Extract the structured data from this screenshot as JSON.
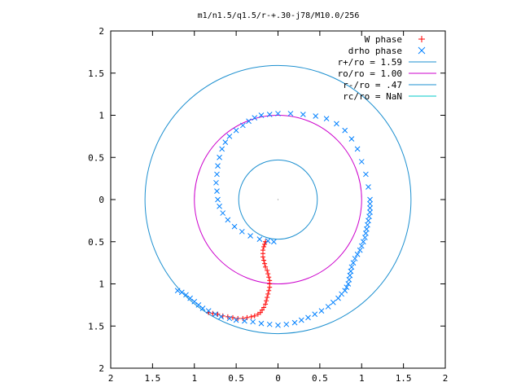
{
  "chart_data": {
    "type": "scatter",
    "title": "m1/n1.5/q1.5/r-+.30-j78/M10.0/256",
    "xlabel": "",
    "ylabel": "",
    "xlim": [
      -2,
      2
    ],
    "ylim": [
      -2,
      2
    ],
    "grid": false,
    "legend_position": "top-right",
    "x_tick_labels": [
      "2",
      "1.5",
      "1",
      "0.5",
      "0",
      "0.5",
      "1",
      "1.5",
      "2"
    ],
    "y_tick_labels": [
      "2",
      "1.5",
      "1",
      "0.5",
      "0",
      "0.5",
      "1",
      "1.5",
      "2"
    ],
    "x_tick_values": [
      -2,
      -1.5,
      -1,
      -0.5,
      0,
      0.5,
      1,
      1.5,
      2
    ],
    "y_tick_values": [
      2,
      1.5,
      1,
      0.5,
      0,
      -0.5,
      -1,
      -1.5,
      -2
    ],
    "series": [
      {
        "name": "W phase",
        "marker": "plus",
        "color": "#ff0000",
        "points": [
          [
            -0.15,
            -0.5
          ],
          [
            -0.16,
            -0.53
          ],
          [
            -0.17,
            -0.56
          ],
          [
            -0.18,
            -0.6
          ],
          [
            -0.18,
            -0.64
          ],
          [
            -0.18,
            -0.68
          ],
          [
            -0.17,
            -0.72
          ],
          [
            -0.16,
            -0.76
          ],
          [
            -0.15,
            -0.8
          ],
          [
            -0.13,
            -0.84
          ],
          [
            -0.12,
            -0.88
          ],
          [
            -0.11,
            -0.92
          ],
          [
            -0.1,
            -0.96
          ],
          [
            -0.1,
            -1.0
          ],
          [
            -0.1,
            -1.04
          ],
          [
            -0.11,
            -1.08
          ],
          [
            -0.12,
            -1.12
          ],
          [
            -0.13,
            -1.16
          ],
          [
            -0.14,
            -1.2
          ],
          [
            -0.15,
            -1.24
          ],
          [
            -0.17,
            -1.28
          ],
          [
            -0.19,
            -1.31
          ],
          [
            -0.21,
            -1.34
          ],
          [
            -0.24,
            -1.36
          ],
          [
            -0.28,
            -1.38
          ],
          [
            -0.32,
            -1.39
          ],
          [
            -0.37,
            -1.4
          ],
          [
            -0.42,
            -1.41
          ],
          [
            -0.48,
            -1.41
          ],
          [
            -0.54,
            -1.4
          ],
          [
            -0.6,
            -1.39
          ],
          [
            -0.66,
            -1.38
          ],
          [
            -0.72,
            -1.36
          ],
          [
            -0.78,
            -1.35
          ],
          [
            -0.83,
            -1.34
          ]
        ]
      },
      {
        "name": "drho phase",
        "marker": "cross",
        "color": "#0080ff",
        "points": [
          [
            -1.2,
            -1.08
          ],
          [
            -1.15,
            -1.1
          ],
          [
            -1.1,
            -1.13
          ],
          [
            -1.05,
            -1.17
          ],
          [
            -1.0,
            -1.21
          ],
          [
            -0.95,
            -1.25
          ],
          [
            -0.9,
            -1.29
          ],
          [
            -0.83,
            -1.32
          ],
          [
            -0.75,
            -1.36
          ],
          [
            -0.68,
            -1.39
          ],
          [
            -0.58,
            -1.41
          ],
          [
            -0.5,
            -1.43
          ],
          [
            -0.4,
            -1.44
          ],
          [
            -0.3,
            -1.45
          ],
          [
            -0.2,
            -1.47
          ],
          [
            -0.1,
            -1.48
          ],
          [
            0.0,
            -1.49
          ],
          [
            0.1,
            -1.48
          ],
          [
            0.2,
            -1.46
          ],
          [
            0.28,
            -1.43
          ],
          [
            0.36,
            -1.4
          ],
          [
            0.44,
            -1.36
          ],
          [
            0.52,
            -1.32
          ],
          [
            0.6,
            -1.27
          ],
          [
            0.66,
            -1.22
          ],
          [
            0.72,
            -1.17
          ],
          [
            0.76,
            -1.12
          ],
          [
            0.8,
            -1.08
          ],
          [
            0.82,
            -1.04
          ],
          [
            0.84,
            -1.0
          ],
          [
            0.85,
            -0.95
          ],
          [
            0.86,
            -0.9
          ],
          [
            0.87,
            -0.85
          ],
          [
            0.88,
            -0.8
          ],
          [
            0.9,
            -0.75
          ],
          [
            0.92,
            -0.7
          ],
          [
            0.95,
            -0.65
          ],
          [
            0.98,
            -0.6
          ],
          [
            1.0,
            -0.55
          ],
          [
            1.02,
            -0.5
          ],
          [
            1.04,
            -0.45
          ],
          [
            1.05,
            -0.4
          ],
          [
            1.06,
            -0.35
          ],
          [
            1.07,
            -0.3
          ],
          [
            1.08,
            -0.25
          ],
          [
            1.09,
            -0.2
          ],
          [
            1.1,
            -0.15
          ],
          [
            1.1,
            -0.1
          ],
          [
            1.1,
            -0.05
          ],
          [
            1.1,
            0.0
          ],
          [
            1.08,
            0.15
          ],
          [
            1.05,
            0.3
          ],
          [
            1.0,
            0.45
          ],
          [
            0.95,
            0.6
          ],
          [
            0.88,
            0.72
          ],
          [
            0.8,
            0.82
          ],
          [
            0.7,
            0.9
          ],
          [
            0.58,
            0.96
          ],
          [
            0.45,
            0.99
          ],
          [
            0.3,
            1.01
          ],
          [
            0.15,
            1.02
          ],
          [
            0.0,
            1.02
          ],
          [
            -0.1,
            1.01
          ],
          [
            -0.2,
            1.0
          ],
          [
            -0.28,
            0.97
          ],
          [
            -0.35,
            0.93
          ],
          [
            -0.42,
            0.88
          ],
          [
            -0.5,
            0.82
          ],
          [
            -0.58,
            0.75
          ],
          [
            -0.63,
            0.68
          ],
          [
            -0.67,
            0.6
          ],
          [
            -0.7,
            0.5
          ],
          [
            -0.72,
            0.4
          ],
          [
            -0.73,
            0.3
          ],
          [
            -0.74,
            0.2
          ],
          [
            -0.73,
            0.1
          ],
          [
            -0.72,
            0.0
          ],
          [
            -0.7,
            -0.08
          ],
          [
            -0.66,
            -0.16
          ],
          [
            -0.6,
            -0.24
          ],
          [
            -0.52,
            -0.32
          ],
          [
            -0.43,
            -0.38
          ],
          [
            -0.33,
            -0.43
          ],
          [
            -0.22,
            -0.47
          ],
          [
            -0.12,
            -0.49
          ],
          [
            -0.05,
            -0.5
          ]
        ]
      },
      {
        "name": "r+/ro = 1.59",
        "marker": "line",
        "color": "#1e90d0",
        "radius": 1.59
      },
      {
        "name": "ro/ro = 1.00",
        "marker": "line",
        "color": "#cc00cc",
        "radius": 1.0
      },
      {
        "name": "r-/ro = .47",
        "marker": "line",
        "color": "#1e90d0",
        "radius": 0.47
      },
      {
        "name": "rc/ro = NaN",
        "marker": "line",
        "color": "#00c8c8",
        "radius": null
      }
    ]
  }
}
